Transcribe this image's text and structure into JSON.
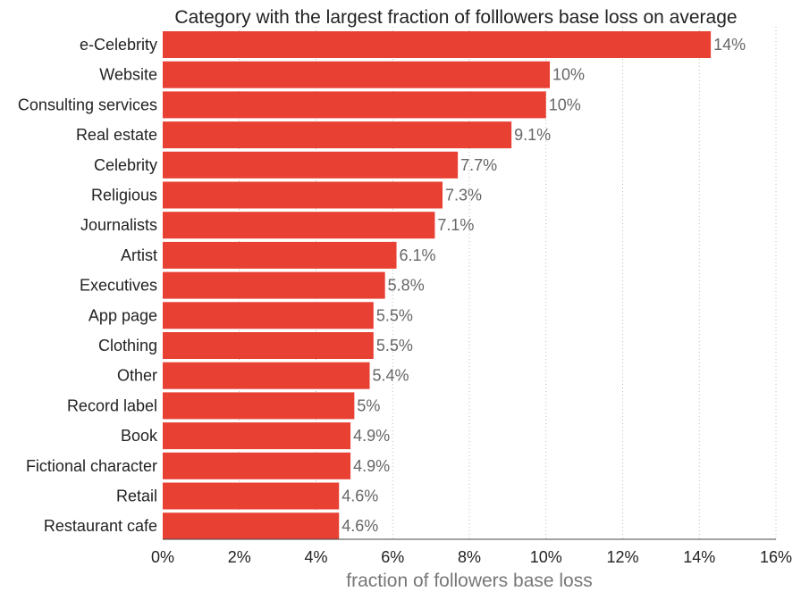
{
  "chart_data": {
    "type": "bar",
    "orientation": "horizontal",
    "title": "Category with the largest fraction of folllowers base loss  on average",
    "xlabel": "fraction of followers base loss",
    "ylabel": "",
    "xlim": [
      0,
      16
    ],
    "xticks": [
      0,
      2,
      4,
      6,
      8,
      10,
      12,
      14,
      16
    ],
    "xtick_labels": [
      "0%",
      "2%",
      "4%",
      "6%",
      "8%",
      "10%",
      "12%",
      "14%",
      "16%"
    ],
    "grid": "vertical dotted",
    "legend": "none",
    "bar_color": "#e84133",
    "categories": [
      "e-Celebrity",
      "Website",
      "Consulting services",
      "Real estate",
      "Celebrity",
      "Religious",
      "Journalists",
      "Artist",
      "Executives",
      "App page",
      "Clothing",
      "Other",
      "Record label",
      "Book",
      "Fictional character",
      "Retail",
      "Restaurant cafe"
    ],
    "values": [
      14.3,
      10.1,
      10.0,
      9.1,
      7.7,
      7.3,
      7.1,
      6.1,
      5.8,
      5.5,
      5.5,
      5.4,
      5.0,
      4.9,
      4.9,
      4.6,
      4.6
    ],
    "value_labels": [
      "14%",
      "10%",
      "10%",
      "9.1%",
      "7.7%",
      "7.3%",
      "7.1%",
      "6.1%",
      "5.8%",
      "5.5%",
      "5.5%",
      "5.4%",
      "5%",
      "4.9%",
      "4.9%",
      "4.6%",
      "4.6%"
    ]
  }
}
